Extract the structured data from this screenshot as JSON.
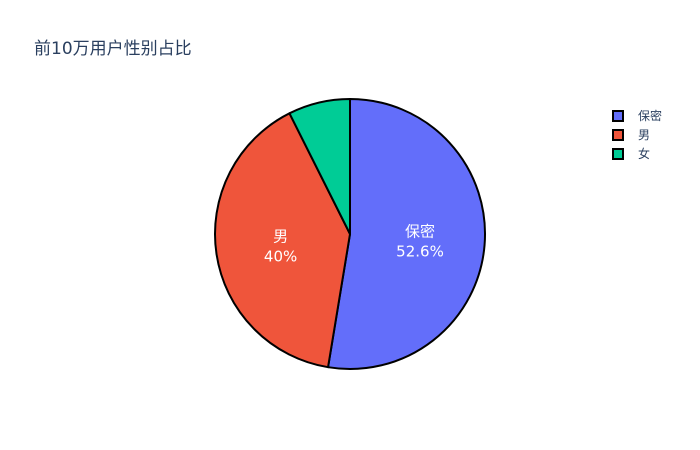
{
  "chart_data": {
    "type": "pie",
    "title": "前10万用户性别占比",
    "categories": [
      "保密",
      "男",
      "女"
    ],
    "values": [
      52.6,
      40,
      7.4
    ],
    "labels_shown": [
      {
        "category": "保密",
        "percent_text": "52.6%"
      },
      {
        "category": "男",
        "percent_text": "40%"
      },
      {
        "category": "女",
        "percent_text": ""
      }
    ],
    "colors": [
      "#636efa",
      "#ef553b",
      "#00cc96"
    ],
    "outline_color": "#000000",
    "legend_placement": "top-right",
    "direction": "clockwise",
    "start_angle_deg": 90
  }
}
